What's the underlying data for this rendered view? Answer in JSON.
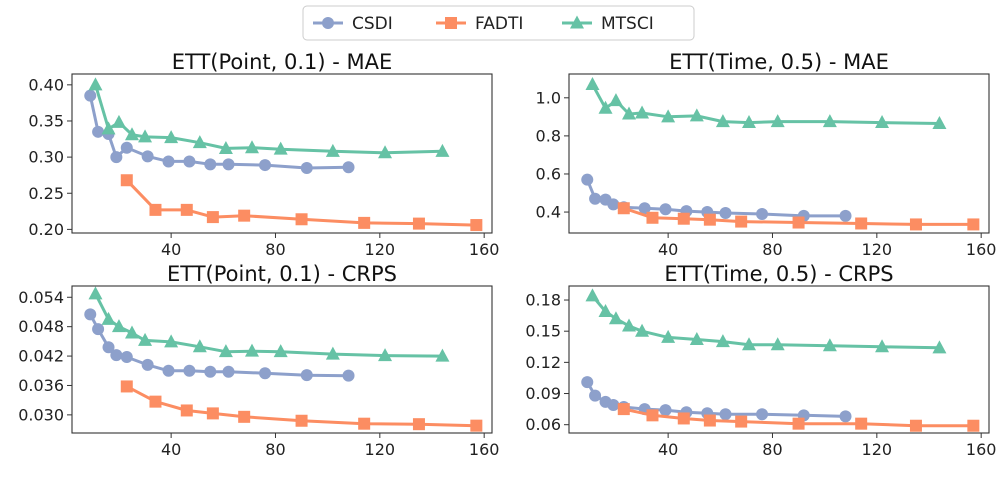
{
  "legend": {
    "entries": [
      {
        "name": "CSDI",
        "color": "#8da0cb",
        "marker": "circle"
      },
      {
        "name": "FADTI",
        "color": "#fc8d62",
        "marker": "square"
      },
      {
        "name": "MTSCI",
        "color": "#66c2a5",
        "marker": "triangle"
      }
    ],
    "placement": "top-center"
  },
  "chart_data": [
    {
      "type": "line",
      "title": "ETT(Point, 0.1) - MAE",
      "xlim": [
        2,
        163
      ],
      "ylim": [
        0.195,
        0.415
      ],
      "xticks": [
        40,
        80,
        120,
        160
      ],
      "xtick_labels": [
        "40",
        "80",
        "120",
        "160"
      ],
      "yticks": [
        0.2,
        0.25,
        0.3,
        0.35,
        0.4
      ],
      "ytick_labels": [
        "0.20",
        "0.25",
        "0.30",
        "0.35",
        "0.40"
      ],
      "series": [
        {
          "name": "CSDI",
          "x": [
            9,
            12,
            16,
            19,
            23,
            31,
            39,
            47,
            55,
            62,
            76,
            92,
            108
          ],
          "y": [
            0.385,
            0.335,
            0.332,
            0.3,
            0.313,
            0.301,
            0.294,
            0.294,
            0.29,
            0.29,
            0.289,
            0.285,
            0.286
          ]
        },
        {
          "name": "FADTI",
          "x": [
            23,
            34,
            46,
            56,
            68,
            90,
            114,
            135,
            157
          ],
          "y": [
            0.268,
            0.227,
            0.227,
            0.217,
            0.219,
            0.214,
            0.209,
            0.208,
            0.206
          ]
        },
        {
          "name": "MTSCI",
          "x": [
            11,
            16,
            20,
            25,
            30,
            40,
            51,
            61,
            71,
            82,
            102,
            122,
            144
          ],
          "y": [
            0.4,
            0.339,
            0.348,
            0.331,
            0.328,
            0.327,
            0.32,
            0.312,
            0.313,
            0.311,
            0.308,
            0.306,
            0.308
          ]
        }
      ]
    },
    {
      "type": "line",
      "title": "ETT(Time, 0.5) - MAE",
      "xlim": [
        2,
        163
      ],
      "ylim": [
        0.29,
        1.125
      ],
      "xticks": [
        40,
        80,
        120,
        160
      ],
      "xtick_labels": [
        "40",
        "80",
        "120",
        "160"
      ],
      "yticks": [
        0.4,
        0.6,
        0.8,
        1.0
      ],
      "ytick_labels": [
        "0.4",
        "0.6",
        "0.8",
        "1.0"
      ],
      "series": [
        {
          "name": "CSDI",
          "x": [
            9,
            12,
            16,
            19,
            23,
            31,
            39,
            47,
            55,
            62,
            76,
            92,
            108
          ],
          "y": [
            0.57,
            0.47,
            0.465,
            0.44,
            0.425,
            0.42,
            0.415,
            0.405,
            0.4,
            0.395,
            0.39,
            0.38,
            0.38
          ]
        },
        {
          "name": "FADTI",
          "x": [
            23,
            34,
            46,
            56,
            68,
            90,
            114,
            135,
            157
          ],
          "y": [
            0.42,
            0.37,
            0.365,
            0.36,
            0.35,
            0.345,
            0.34,
            0.335,
            0.335
          ]
        },
        {
          "name": "MTSCI",
          "x": [
            11,
            16,
            20,
            25,
            30,
            40,
            51,
            61,
            71,
            82,
            102,
            122,
            144
          ],
          "y": [
            1.07,
            0.945,
            0.985,
            0.915,
            0.92,
            0.9,
            0.905,
            0.875,
            0.87,
            0.875,
            0.875,
            0.87,
            0.865
          ]
        }
      ]
    },
    {
      "type": "line",
      "title": "ETT(Point, 0.1) - CRPS",
      "xlim": [
        2,
        163
      ],
      "ylim": [
        0.0263,
        0.0563
      ],
      "xticks": [
        40,
        80,
        120,
        160
      ],
      "xtick_labels": [
        "40",
        "80",
        "120",
        "160"
      ],
      "yticks": [
        0.03,
        0.036,
        0.042,
        0.048,
        0.054
      ],
      "ytick_labels": [
        "0.030",
        "0.036",
        "0.042",
        "0.048",
        "0.054"
      ],
      "series": [
        {
          "name": "CSDI",
          "x": [
            9,
            12,
            16,
            19,
            23,
            31,
            39,
            47,
            55,
            62,
            76,
            92,
            108
          ],
          "y": [
            0.0505,
            0.0475,
            0.0438,
            0.0422,
            0.0418,
            0.0402,
            0.039,
            0.039,
            0.0388,
            0.0388,
            0.0385,
            0.0381,
            0.038
          ]
        },
        {
          "name": "FADTI",
          "x": [
            23,
            34,
            46,
            56,
            68,
            90,
            114,
            135,
            157
          ],
          "y": [
            0.0358,
            0.0327,
            0.0309,
            0.0303,
            0.0296,
            0.0288,
            0.0282,
            0.0281,
            0.0278
          ]
        },
        {
          "name": "MTSCI",
          "x": [
            11,
            16,
            20,
            25,
            30,
            40,
            51,
            61,
            71,
            82,
            102,
            122,
            144
          ],
          "y": [
            0.0547,
            0.0495,
            0.048,
            0.0467,
            0.0452,
            0.0449,
            0.0439,
            0.0429,
            0.043,
            0.0429,
            0.0424,
            0.0421,
            0.042
          ]
        }
      ]
    },
    {
      "type": "line",
      "title": "ETT(Time, 0.5) - CRPS",
      "xlim": [
        2,
        163
      ],
      "ylim": [
        0.052,
        0.1935
      ],
      "xticks": [
        40,
        80,
        120,
        160
      ],
      "xtick_labels": [
        "40",
        "80",
        "120",
        "160"
      ],
      "yticks": [
        0.06,
        0.09,
        0.12,
        0.15,
        0.18
      ],
      "ytick_labels": [
        "0.06",
        "0.09",
        "0.12",
        "0.15",
        "0.18"
      ],
      "series": [
        {
          "name": "CSDI",
          "x": [
            9,
            12,
            16,
            19,
            23,
            31,
            39,
            47,
            55,
            62,
            76,
            92,
            108
          ],
          "y": [
            0.101,
            0.088,
            0.082,
            0.079,
            0.077,
            0.075,
            0.074,
            0.072,
            0.071,
            0.07,
            0.07,
            0.069,
            0.068
          ]
        },
        {
          "name": "FADTI",
          "x": [
            23,
            34,
            46,
            56,
            68,
            90,
            114,
            135,
            157
          ],
          "y": [
            0.075,
            0.069,
            0.066,
            0.064,
            0.063,
            0.061,
            0.061,
            0.059,
            0.059
          ]
        },
        {
          "name": "MTSCI",
          "x": [
            11,
            16,
            20,
            25,
            30,
            40,
            51,
            61,
            71,
            82,
            102,
            122,
            144
          ],
          "y": [
            0.184,
            0.169,
            0.162,
            0.155,
            0.15,
            0.144,
            0.142,
            0.14,
            0.137,
            0.137,
            0.136,
            0.135,
            0.134
          ]
        }
      ]
    }
  ]
}
